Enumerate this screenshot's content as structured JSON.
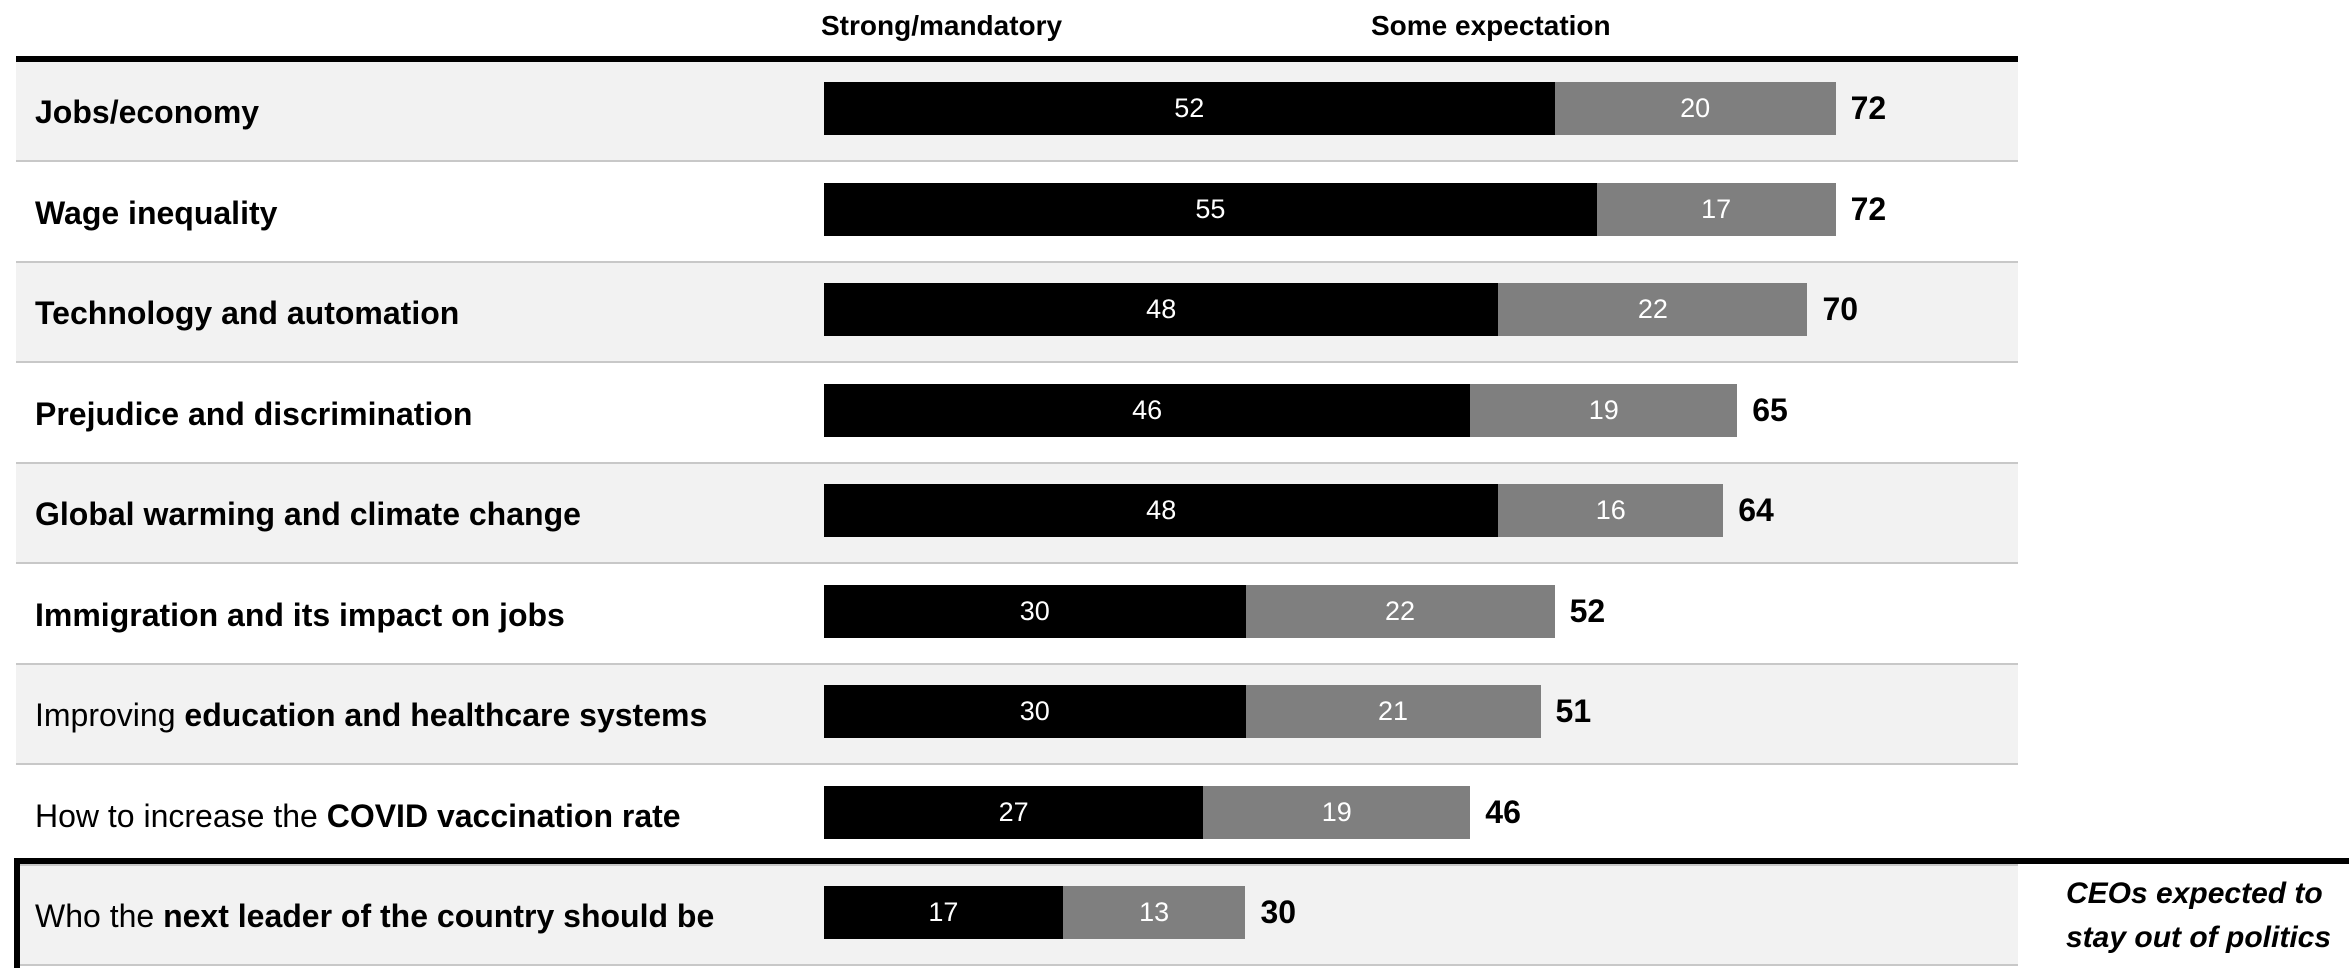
{
  "chart_data": {
    "type": "bar",
    "orientation": "horizontal",
    "stacked": true,
    "legend": [
      "Strong/mandatory",
      "Some expectation"
    ],
    "categories": [
      {
        "prefix": "",
        "bold": "Jobs/economy"
      },
      {
        "prefix": "",
        "bold": "Wage inequality"
      },
      {
        "prefix": "",
        "bold": "Technology and automation"
      },
      {
        "prefix": "",
        "bold": "Prejudice and discrimination"
      },
      {
        "prefix": "",
        "bold": "Global warming and climate change"
      },
      {
        "prefix": "",
        "bold": "Immigration and its impact on jobs"
      },
      {
        "prefix": "Improving ",
        "bold": "education and healthcare systems"
      },
      {
        "prefix": "How to increase the ",
        "bold": "COVID vaccination rate"
      },
      {
        "prefix": "Who the ",
        "bold": "next leader of the country should be"
      }
    ],
    "series": [
      {
        "name": "Strong/mandatory",
        "values": [
          52,
          55,
          48,
          46,
          48,
          30,
          30,
          27,
          17
        ],
        "color": "#000000"
      },
      {
        "name": "Some expectation",
        "values": [
          20,
          17,
          22,
          19,
          16,
          22,
          21,
          19,
          13
        ],
        "color": "#7f7f7f"
      }
    ],
    "totals": [
      72,
      72,
      70,
      65,
      64,
      52,
      51,
      46,
      30
    ],
    "annotation": {
      "line1": "CEOs expected to",
      "line2": "stay out of politics"
    },
    "xlim": [
      0,
      100
    ]
  }
}
